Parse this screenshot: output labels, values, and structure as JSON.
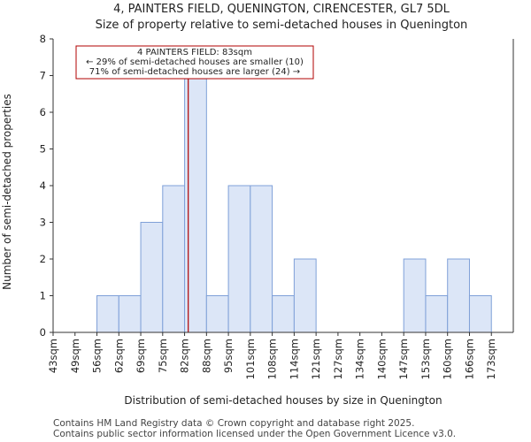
{
  "chart_data": {
    "type": "bar",
    "title": "4, PAINTERS FIELD, QUENINGTON, CIRENCESTER, GL7 5DL",
    "subtitle": "Size of property relative to semi-detached houses in Quenington",
    "xlabel": "Distribution of semi-detached houses by size in Quenington",
    "ylabel": "Number of semi-detached properties",
    "categories": [
      "43sqm",
      "49sqm",
      "56sqm",
      "62sqm",
      "69sqm",
      "75sqm",
      "82sqm",
      "88sqm",
      "95sqm",
      "101sqm",
      "108sqm",
      "114sqm",
      "121sqm",
      "127sqm",
      "134sqm",
      "140sqm",
      "147sqm",
      "153sqm",
      "160sqm",
      "166sqm",
      "173sqm"
    ],
    "values": [
      0,
      0,
      1,
      1,
      3,
      4,
      7,
      1,
      4,
      4,
      1,
      2,
      0,
      0,
      0,
      0,
      2,
      1,
      2,
      1,
      0
    ],
    "ylim": [
      0,
      8
    ],
    "yticks": [
      0,
      1,
      2,
      3,
      4,
      5,
      6,
      7,
      8
    ],
    "bar_color": "#dce6f7",
    "bar_edge_color": "#7fa0d8",
    "highlight": {
      "color": "#b00000",
      "value_sqm": 83
    },
    "annotation": {
      "line1": "4 PAINTERS FIELD: 83sqm",
      "line2": "← 29% of semi-detached houses are smaller (10)",
      "line3": "71% of semi-detached houses are larger (24) →"
    },
    "grid": false
  },
  "footer": {
    "line1": "Contains HM Land Registry data © Crown copyright and database right 2025.",
    "line2": "Contains public sector information licensed under the Open Government Licence v3.0."
  }
}
